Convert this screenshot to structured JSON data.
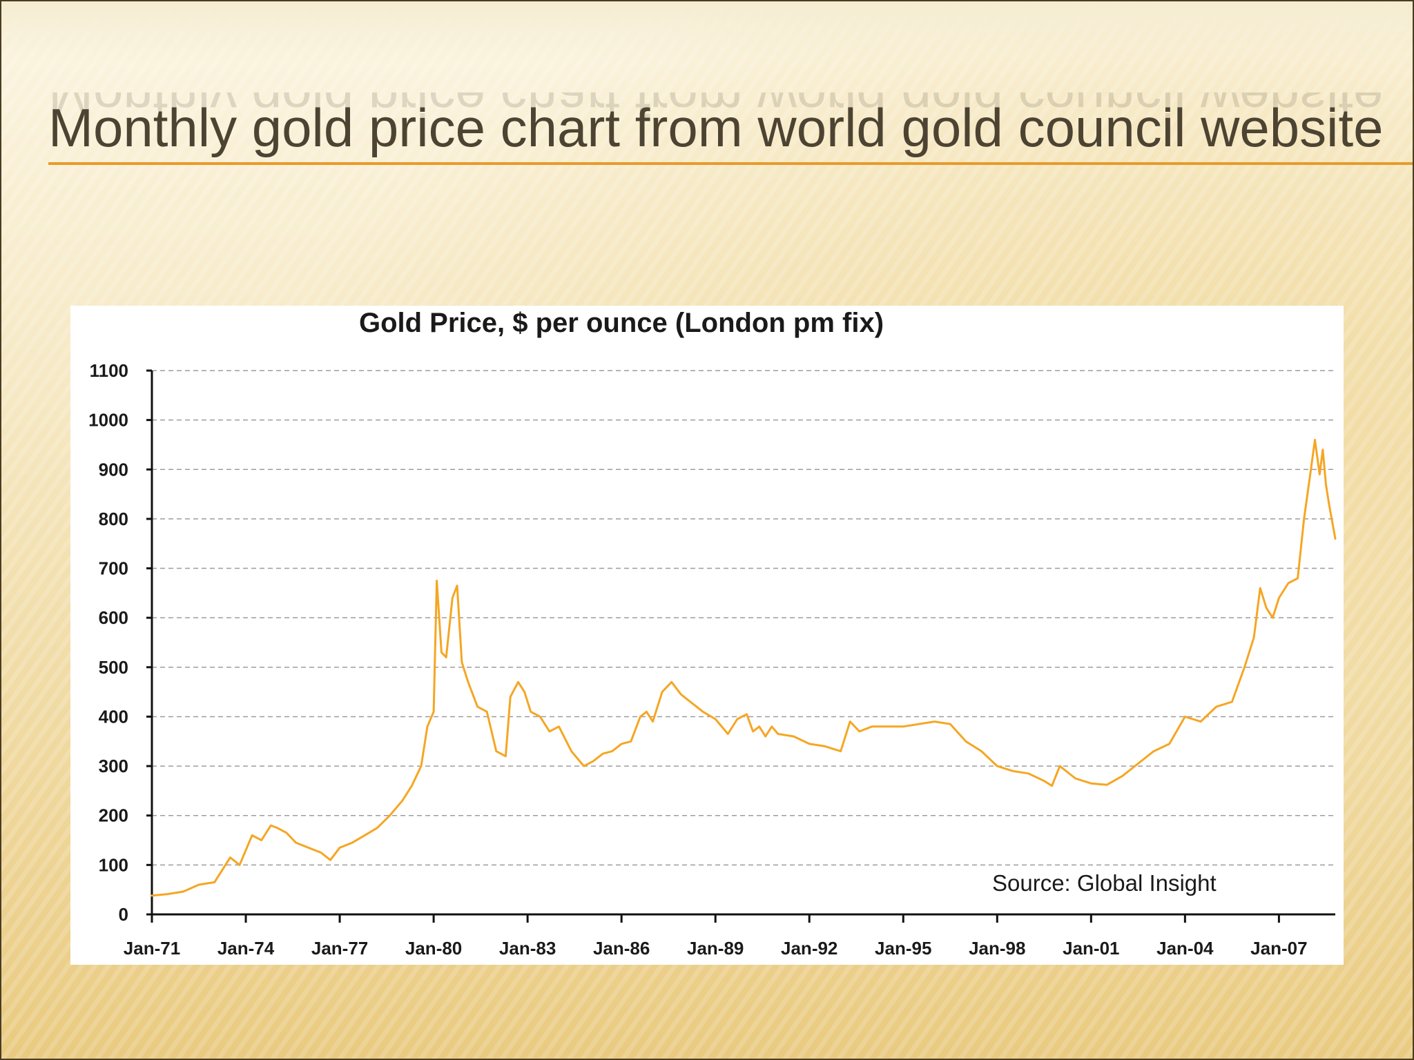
{
  "slide": {
    "title": "Monthly gold price chart from world gold council website",
    "accent_color": "#e79b2c",
    "title_color": "#4d4332"
  },
  "chart_data": {
    "type": "line",
    "title": "Gold Price, $ per ounce (London pm fix)",
    "xlabel": "",
    "ylabel": "",
    "ylim": [
      0,
      1100
    ],
    "y_ticks": [
      0,
      100,
      200,
      300,
      400,
      500,
      600,
      700,
      800,
      900,
      1000,
      1100
    ],
    "x_ticks": [
      {
        "label": "Jan-71",
        "x": 1971.0
      },
      {
        "label": "Jan-74",
        "x": 1974.0
      },
      {
        "label": "Jan-77",
        "x": 1977.0
      },
      {
        "label": "Jan-80",
        "x": 1980.0
      },
      {
        "label": "Jan-83",
        "x": 1983.0
      },
      {
        "label": "Jan-86",
        "x": 1986.0
      },
      {
        "label": "Jan-89",
        "x": 1989.0
      },
      {
        "label": "Jan-92",
        "x": 1992.0
      },
      {
        "label": "Jan-95",
        "x": 1995.0
      },
      {
        "label": "Jan-98",
        "x": 1998.0
      },
      {
        "label": "Jan-01",
        "x": 2001.0
      },
      {
        "label": "Jan-04",
        "x": 2004.0
      },
      {
        "label": "Jan-07",
        "x": 2007.0
      }
    ],
    "xlim": [
      1971.0,
      2008.8
    ],
    "grid": true,
    "grid_style": "dashed horizontal",
    "line_color": "#f5a623",
    "annotation": "Source: Global Insight",
    "series": [
      {
        "x": [
          1971.0,
          1971.5,
          1972.0,
          1972.5,
          1973.0,
          1973.3,
          1973.5,
          1973.8,
          1974.2,
          1974.5,
          1974.8,
          1975.0,
          1975.3,
          1975.6,
          1976.0,
          1976.4,
          1976.7,
          1977.0,
          1977.4,
          1977.8,
          1978.2,
          1978.6,
          1979.0,
          1979.3,
          1979.6,
          1979.8,
          1980.0,
          1980.1,
          1980.25,
          1980.4,
          1980.6,
          1980.75,
          1980.9,
          1981.1,
          1981.4,
          1981.7,
          1982.0,
          1982.3,
          1982.45,
          1982.7,
          1982.9,
          1983.1,
          1983.4,
          1983.7,
          1984.0,
          1984.4,
          1984.8,
          1985.1,
          1985.4,
          1985.7,
          1986.0,
          1986.3,
          1986.6,
          1986.8,
          1987.0,
          1987.3,
          1987.6,
          1987.9,
          1988.2,
          1988.6,
          1989.0,
          1989.4,
          1989.7,
          1990.0,
          1990.2,
          1990.4,
          1990.6,
          1990.8,
          1991.0,
          1991.5,
          1992.0,
          1992.5,
          1993.0,
          1993.3,
          1993.6,
          1994.0,
          1994.5,
          1995.0,
          1995.5,
          1996.0,
          1996.5,
          1997.0,
          1997.5,
          1998.0,
          1998.5,
          1999.0,
          1999.5,
          1999.75,
          2000.0,
          2000.5,
          2001.0,
          2001.5,
          2002.0,
          2002.5,
          2003.0,
          2003.5,
          2004.0,
          2004.5,
          2005.0,
          2005.5,
          2005.9,
          2006.2,
          2006.4,
          2006.6,
          2006.8,
          2007.0,
          2007.3,
          2007.6,
          2007.8,
          2008.0,
          2008.15,
          2008.3,
          2008.4,
          2008.5,
          2008.6,
          2008.8
        ],
        "values": [
          38,
          41,
          46,
          60,
          65,
          95,
          115,
          100,
          160,
          150,
          180,
          175,
          165,
          145,
          135,
          125,
          110,
          135,
          145,
          160,
          175,
          200,
          230,
          260,
          300,
          380,
          410,
          675,
          530,
          520,
          640,
          665,
          510,
          470,
          420,
          410,
          330,
          320,
          440,
          470,
          450,
          410,
          400,
          370,
          380,
          330,
          300,
          310,
          325,
          330,
          345,
          350,
          400,
          410,
          390,
          450,
          470,
          445,
          430,
          410,
          395,
          365,
          395,
          405,
          370,
          380,
          360,
          380,
          365,
          360,
          345,
          340,
          330,
          390,
          370,
          380,
          380,
          380,
          385,
          390,
          385,
          350,
          330,
          300,
          290,
          285,
          270,
          260,
          300,
          275,
          265,
          262,
          280,
          305,
          330,
          345,
          400,
          390,
          420,
          430,
          500,
          560,
          660,
          620,
          600,
          640,
          670,
          680,
          800,
          890,
          960,
          890,
          940,
          870,
          830,
          760
        ]
      }
    ]
  }
}
